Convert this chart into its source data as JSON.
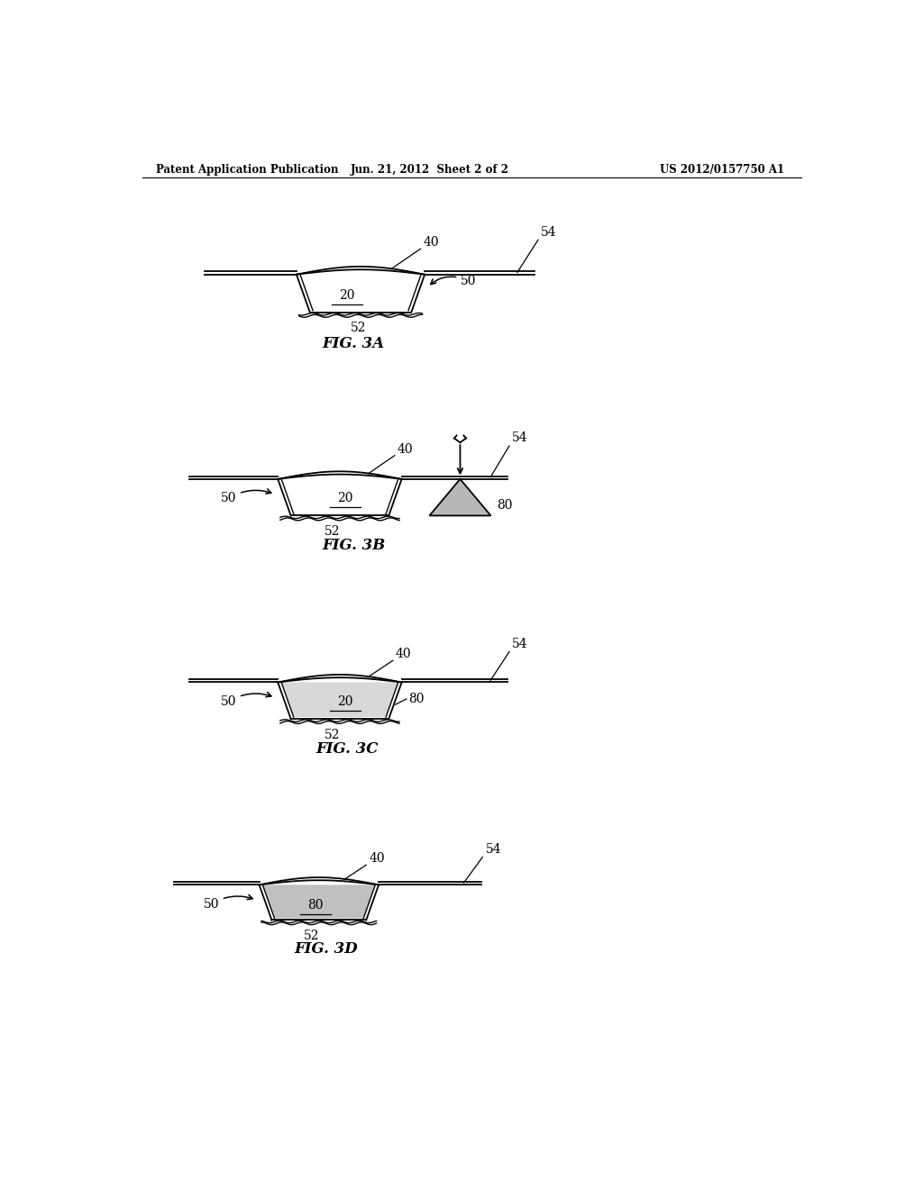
{
  "header_left": "Patent Application Publication",
  "header_center": "Jun. 21, 2012  Sheet 2 of 2",
  "header_right": "US 2012/0157750 A1",
  "bg_color": "#ffffff",
  "line_color": "#000000",
  "fig_labels": [
    "FIG. 3A",
    "FIG. 3B",
    "FIG. 3C",
    "FIG. 3D"
  ],
  "wound_color": "#ffffff",
  "fill_color": "#c0c0c0",
  "triangle_fill": "#b8b8b8",
  "dressing_inner_color": "#d8d8d8"
}
